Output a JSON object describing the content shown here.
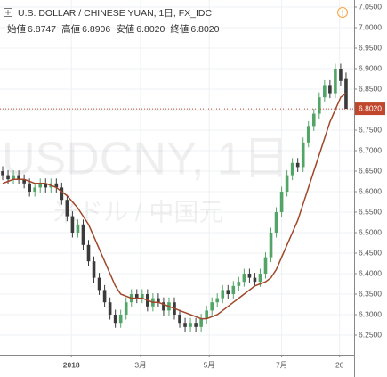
{
  "chart_data": {
    "type": "candlestick",
    "title": "U.S. DOLLAR / CHINESE YUAN, 1日, FX_IDC",
    "ohlc_header": [
      {
        "label": "始値",
        "value": "6.8747"
      },
      {
        "label": "高値",
        "value": "6.8906"
      },
      {
        "label": "安値",
        "value": "6.8020"
      },
      {
        "label": "終値",
        "value": "6.8020"
      }
    ],
    "watermark": [
      "USDCNY, 1日",
      "米ドル / 中国元"
    ],
    "x": [
      0.5,
      1.5,
      2.5,
      3.5,
      4.5,
      5.5,
      6.5,
      7.5,
      8.5,
      9.5,
      10.5,
      11.5,
      12.5,
      13.5,
      14.5,
      15.5,
      16.5,
      17.5,
      18.5,
      19.5,
      20.5,
      21.5,
      22.5,
      23.5,
      24.5,
      25.5,
      26.5,
      27.5,
      28.5,
      29.5,
      30.5,
      31.5,
      32.5,
      33.5,
      34.5,
      35.5,
      36.5,
      37.5,
      38.5,
      39.5,
      40.5,
      41.5,
      42.5,
      43.5,
      44.5,
      45.5,
      46.5,
      47.5,
      48.5,
      49.5,
      50.5,
      51.5,
      52.5,
      53.5,
      54.5,
      55.5,
      56.5,
      57.5,
      58.5,
      59.5,
      60.5,
      61.5,
      62.5,
      63.5,
      64.5
    ],
    "xlim": [
      0,
      66
    ],
    "xticks": [
      {
        "value": 13.3,
        "label": "2018"
      },
      {
        "value": 26.2,
        "label": "3月"
      },
      {
        "value": 39,
        "label": "5月"
      },
      {
        "value": 52.5,
        "label": "7月"
      },
      {
        "value": 63.3,
        "label": "20"
      }
    ],
    "ylim": [
      6.2022,
      7.0674
    ],
    "yticks": [
      {
        "value": 6.25,
        "label": "6.2500"
      },
      {
        "value": 6.3,
        "label": "6.3000"
      },
      {
        "value": 6.35,
        "label": "6.3500"
      },
      {
        "value": 6.4,
        "label": "6.4000"
      },
      {
        "value": 6.45,
        "label": "6.4500"
      },
      {
        "value": 6.5,
        "label": "6.5000"
      },
      {
        "value": 6.55,
        "label": "6.5500"
      },
      {
        "value": 6.6,
        "label": "6.6000"
      },
      {
        "value": 6.65,
        "label": "6.6500"
      },
      {
        "value": 6.7,
        "label": "6.7000"
      },
      {
        "value": 6.75,
        "label": "6.7500"
      },
      {
        "value": 6.8,
        "label": "6.8000"
      },
      {
        "value": 6.85,
        "label": "6.8500"
      },
      {
        "value": 6.9,
        "label": "6.9000"
      },
      {
        "value": 6.95,
        "label": "6.9500"
      },
      {
        "value": 7.0,
        "label": "7.0000"
      },
      {
        "value": 7.05,
        "label": "7.0500"
      }
    ],
    "grid": true,
    "up_color": "#53a567",
    "down_color": "#3b3b3b",
    "open": [
      6.65,
      6.64,
      6.63,
      6.64,
      6.63,
      6.62,
      6.6,
      6.61,
      6.62,
      6.61,
      6.62,
      6.61,
      6.58,
      6.54,
      6.5,
      6.52,
      6.47,
      6.43,
      6.39,
      6.36,
      6.33,
      6.3,
      6.28,
      6.3,
      6.33,
      6.35,
      6.34,
      6.35,
      6.32,
      6.34,
      6.33,
      6.31,
      6.33,
      6.3,
      6.28,
      6.27,
      6.28,
      6.27,
      6.29,
      6.31,
      6.33,
      6.34,
      6.36,
      6.35,
      6.37,
      6.38,
      6.4,
      6.39,
      6.38,
      6.4,
      6.44,
      6.5,
      6.55,
      6.6,
      6.64,
      6.67,
      6.66,
      6.72,
      6.76,
      6.79,
      6.83,
      6.86,
      6.84,
      6.9,
      6.8747
    ],
    "high": [
      6.662,
      6.652,
      6.652,
      6.652,
      6.642,
      6.632,
      6.622,
      6.632,
      6.632,
      6.632,
      6.632,
      6.622,
      6.592,
      6.552,
      6.532,
      6.532,
      6.482,
      6.442,
      6.402,
      6.372,
      6.342,
      6.312,
      6.312,
      6.342,
      6.362,
      6.362,
      6.362,
      6.362,
      6.352,
      6.352,
      6.342,
      6.342,
      6.342,
      6.312,
      6.292,
      6.292,
      6.292,
      6.302,
      6.322,
      6.342,
      6.352,
      6.372,
      6.372,
      6.382,
      6.392,
      6.412,
      6.412,
      6.402,
      6.412,
      6.452,
      6.512,
      6.562,
      6.612,
      6.652,
      6.682,
      6.682,
      6.732,
      6.772,
      6.802,
      6.842,
      6.872,
      6.872,
      6.912,
      6.912,
      6.8906
    ],
    "low": [
      6.628,
      6.618,
      6.618,
      6.618,
      6.608,
      6.588,
      6.588,
      6.598,
      6.598,
      6.598,
      6.598,
      6.568,
      6.528,
      6.488,
      6.488,
      6.458,
      6.418,
      6.378,
      6.348,
      6.318,
      6.288,
      6.268,
      6.268,
      6.288,
      6.318,
      6.328,
      6.328,
      6.308,
      6.308,
      6.318,
      6.298,
      6.298,
      6.288,
      6.268,
      6.258,
      6.258,
      6.258,
      6.258,
      6.278,
      6.298,
      6.318,
      6.328,
      6.338,
      6.338,
      6.358,
      6.368,
      6.378,
      6.368,
      6.368,
      6.388,
      6.428,
      6.488,
      6.538,
      6.588,
      6.628,
      6.648,
      6.648,
      6.708,
      6.748,
      6.778,
      6.818,
      6.828,
      6.828,
      6.858,
      6.802
    ],
    "close": [
      6.64,
      6.63,
      6.64,
      6.63,
      6.62,
      6.6,
      6.61,
      6.62,
      6.61,
      6.62,
      6.61,
      6.58,
      6.54,
      6.5,
      6.52,
      6.47,
      6.43,
      6.39,
      6.36,
      6.33,
      6.3,
      6.28,
      6.3,
      6.33,
      6.35,
      6.34,
      6.35,
      6.32,
      6.34,
      6.33,
      6.31,
      6.33,
      6.3,
      6.28,
      6.27,
      6.28,
      6.27,
      6.29,
      6.31,
      6.33,
      6.34,
      6.36,
      6.35,
      6.37,
      6.38,
      6.4,
      6.39,
      6.38,
      6.4,
      6.44,
      6.5,
      6.55,
      6.6,
      6.64,
      6.67,
      6.66,
      6.72,
      6.76,
      6.79,
      6.83,
      6.86,
      6.84,
      6.9,
      6.87,
      6.802
    ],
    "ma": {
      "color": "#a0472a",
      "values": [
        6.62,
        6.625,
        6.63,
        6.63,
        6.63,
        6.625,
        6.62,
        6.62,
        6.62,
        6.615,
        6.61,
        6.6,
        6.59,
        6.575,
        6.56,
        6.54,
        6.52,
        6.49,
        6.46,
        6.43,
        6.4,
        6.37,
        6.35,
        6.345,
        6.34,
        6.34,
        6.34,
        6.335,
        6.33,
        6.33,
        6.325,
        6.32,
        6.315,
        6.31,
        6.305,
        6.3,
        6.295,
        6.29,
        6.29,
        6.295,
        6.3,
        6.31,
        6.32,
        6.33,
        6.34,
        6.35,
        6.36,
        6.37,
        6.375,
        6.38,
        6.39,
        6.41,
        6.44,
        6.47,
        6.5,
        6.53,
        6.57,
        6.61,
        6.65,
        6.69,
        6.73,
        6.77,
        6.8,
        6.83,
        6.84
      ]
    },
    "price_line": {
      "value": 6.802,
      "label": "6.8020",
      "color": "#c0462c"
    }
  }
}
